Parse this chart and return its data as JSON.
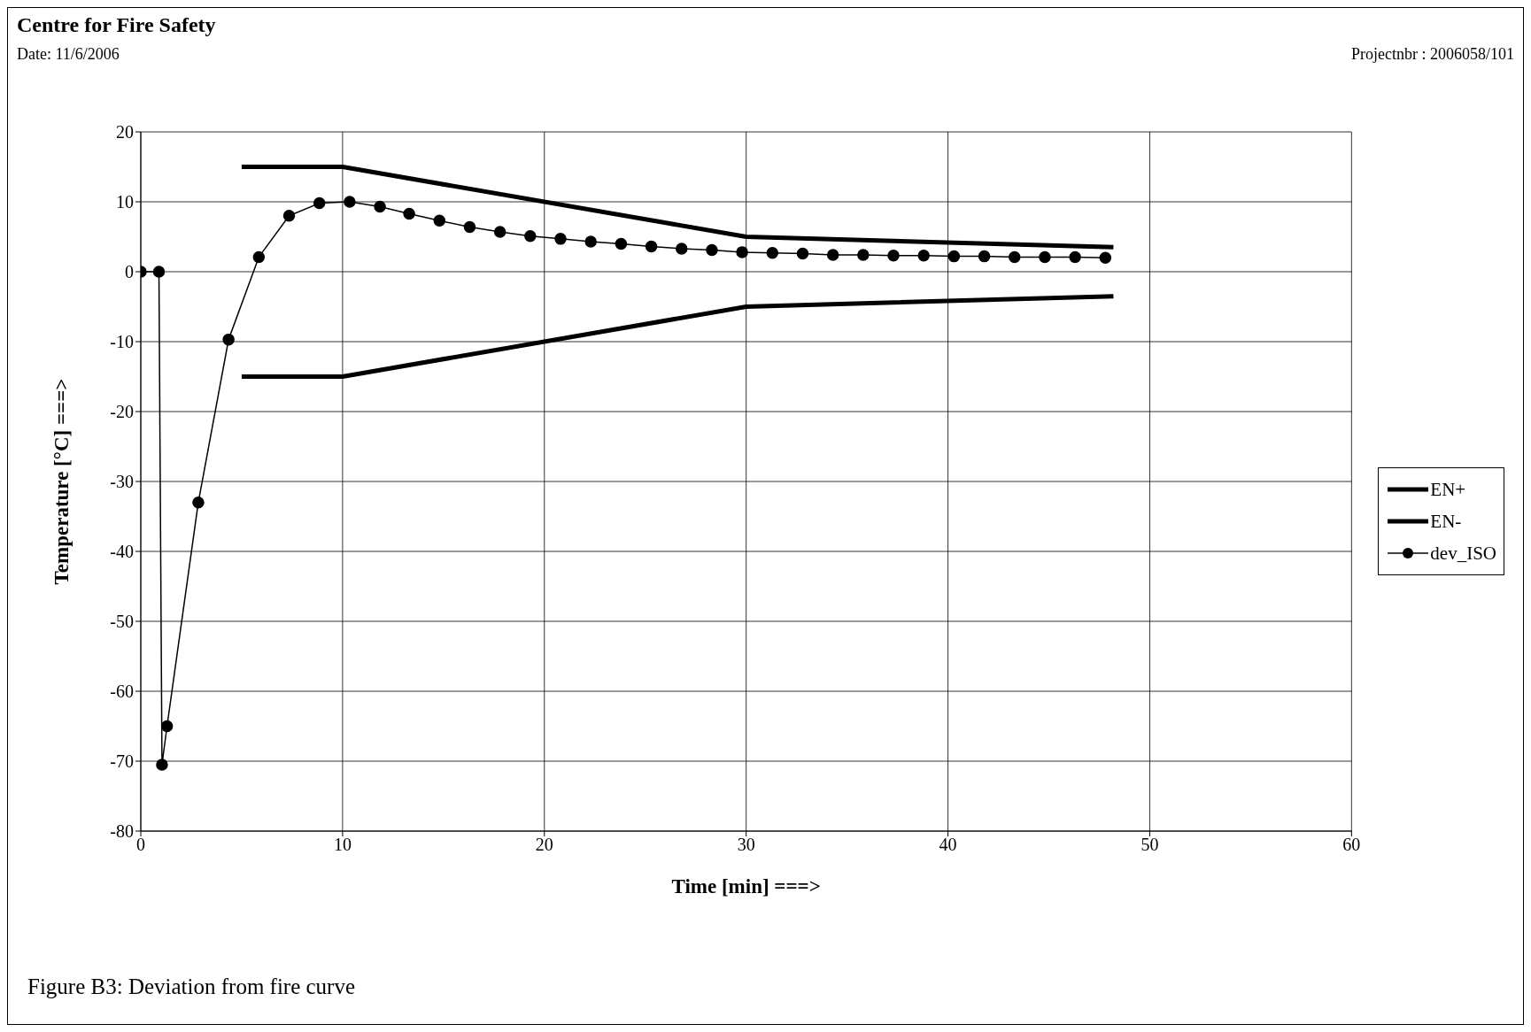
{
  "chart_data": {
    "type": "line",
    "title": "Centre for Fire Safety",
    "annotations": [
      "Date: 11/6/2006",
      "Projectnbr : 2006058/101",
      "Figure B3: Deviation from fire curve"
    ],
    "xlabel": "Time [min] ===>",
    "ylabel": "Temperature [°C] ===>",
    "xlim": [
      0,
      60
    ],
    "xticks": [
      0,
      10,
      20,
      30,
      40,
      50,
      60
    ],
    "ylim": [
      -80,
      20
    ],
    "yticks": [
      -80,
      -70,
      -60,
      -50,
      -40,
      -30,
      -20,
      -10,
      0,
      10,
      20
    ],
    "grid": true,
    "legend": "right",
    "line_style": "solid",
    "series": [
      {
        "name": "EN+",
        "color": "#000000",
        "marker": "none",
        "x": [
          5,
          10,
          30,
          48.2
        ],
        "values": [
          15,
          15,
          5,
          3.5
        ]
      },
      {
        "name": "EN-",
        "color": "#000000",
        "marker": "none",
        "x": [
          5,
          10,
          30,
          48.2
        ],
        "values": [
          -15,
          -15,
          -5,
          -3.5
        ]
      },
      {
        "name": "dev_ISO",
        "color": "#000000",
        "marker": "circle",
        "x": [
          0,
          0.9,
          1.05,
          1.3,
          2.85,
          4.35,
          5.85,
          7.35,
          8.85,
          10.35,
          11.85,
          13.3,
          14.8,
          16.3,
          17.8,
          19.3,
          20.8,
          22.3,
          23.8,
          25.3,
          26.8,
          28.3,
          29.8,
          31.3,
          32.8,
          34.3,
          35.8,
          37.3,
          38.8,
          40.3,
          41.8,
          43.3,
          44.8,
          46.3,
          47.8
        ],
        "values": [
          0,
          0,
          -70.5,
          -65,
          -33,
          -9.7,
          2.1,
          8,
          9.8,
          10,
          9.3,
          8.3,
          7.3,
          6.4,
          5.7,
          5.1,
          4.7,
          4.3,
          4,
          3.6,
          3.3,
          3.1,
          2.8,
          2.7,
          2.6,
          2.4,
          2.4,
          2.3,
          2.3,
          2.2,
          2.2,
          2.1,
          2.1,
          2.1,
          2
        ]
      }
    ]
  }
}
